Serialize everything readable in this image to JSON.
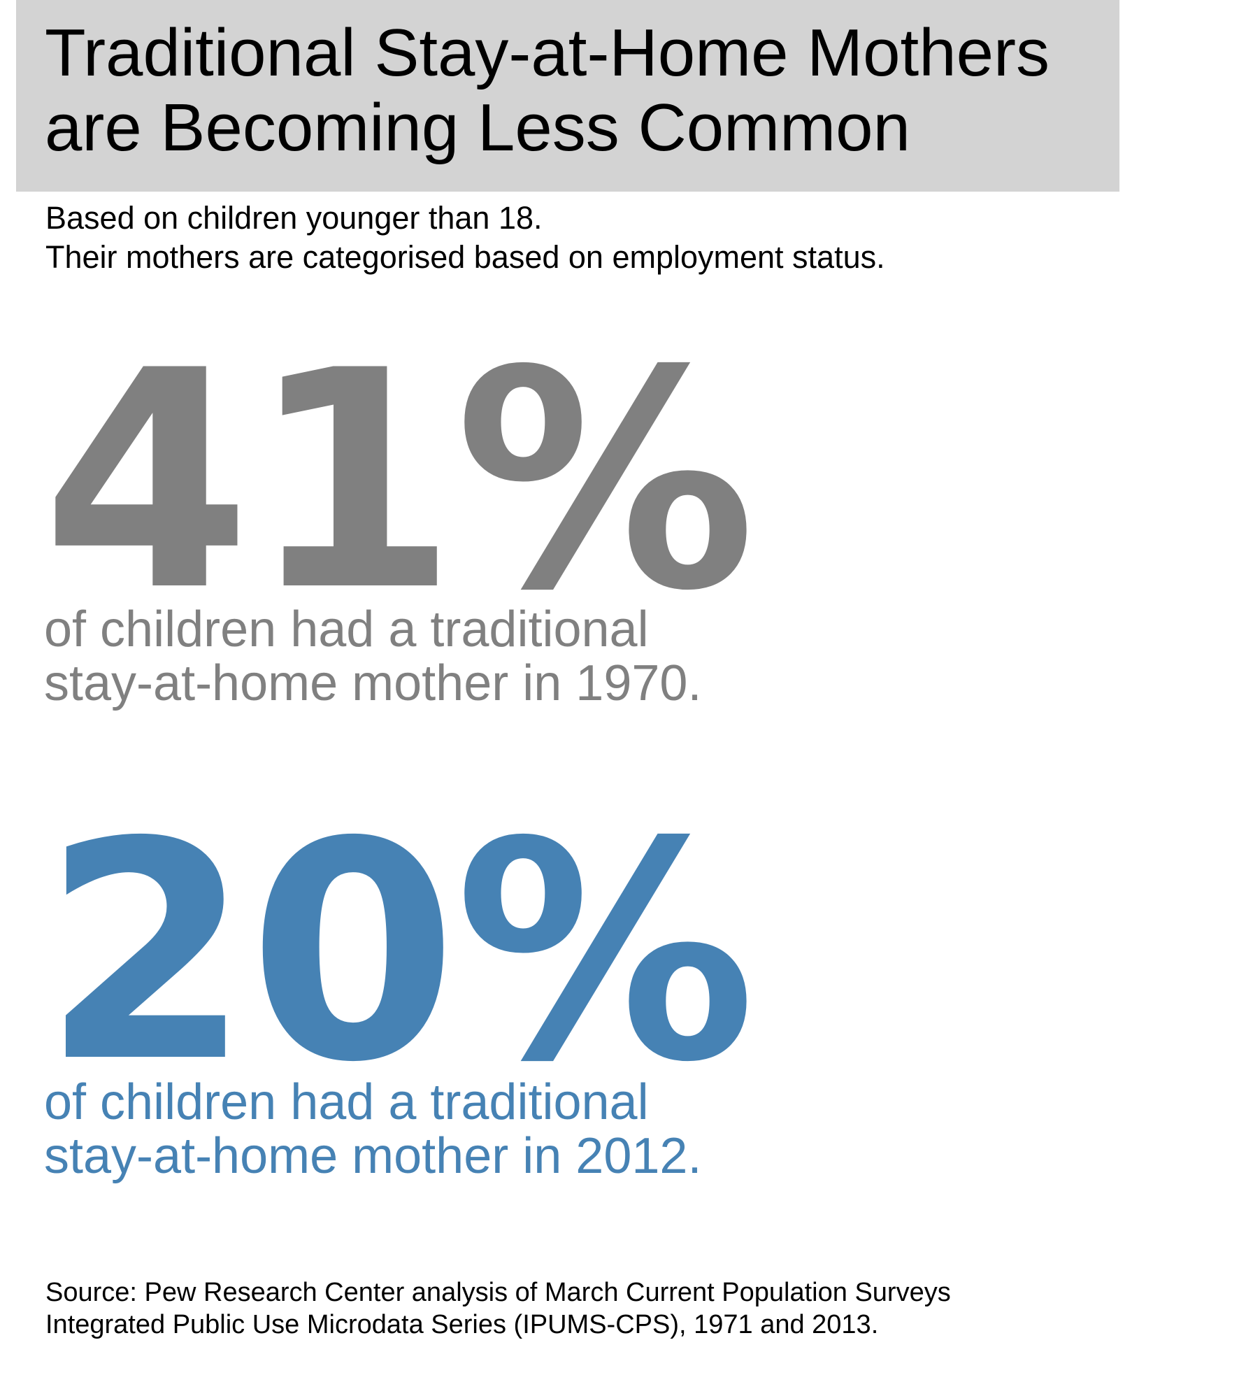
{
  "chart_data": {
    "type": "table",
    "title": [
      "Traditional Stay-at-Home Mothers",
      "are Becoming Less Common"
    ],
    "subtitle": [
      "Based on children younger than 18.",
      "Their mothers are categorised based on employment status."
    ],
    "stats": [
      {
        "value": "41%",
        "percent": 41,
        "year": 1970,
        "text": [
          "of children had a traditional",
          "stay-at-home mother in 1970."
        ],
        "color": "#808080"
      },
      {
        "value": "20%",
        "percent": 20,
        "year": 2012,
        "text": [
          "of children had a traditional",
          "stay-at-home mother in 2012."
        ],
        "color": "#4682b4"
      }
    ],
    "source": [
      "Source: Pew Research Center analysis of March Current Population Surveys",
      "Integrated Public Use Microdata Series (IPUMS-CPS), 1971 and 2013."
    ]
  },
  "colors": {
    "title_background": "#d3d3d3",
    "text": "#000000",
    "gray_stat": "#808080",
    "blue_stat": "#4682b4"
  }
}
